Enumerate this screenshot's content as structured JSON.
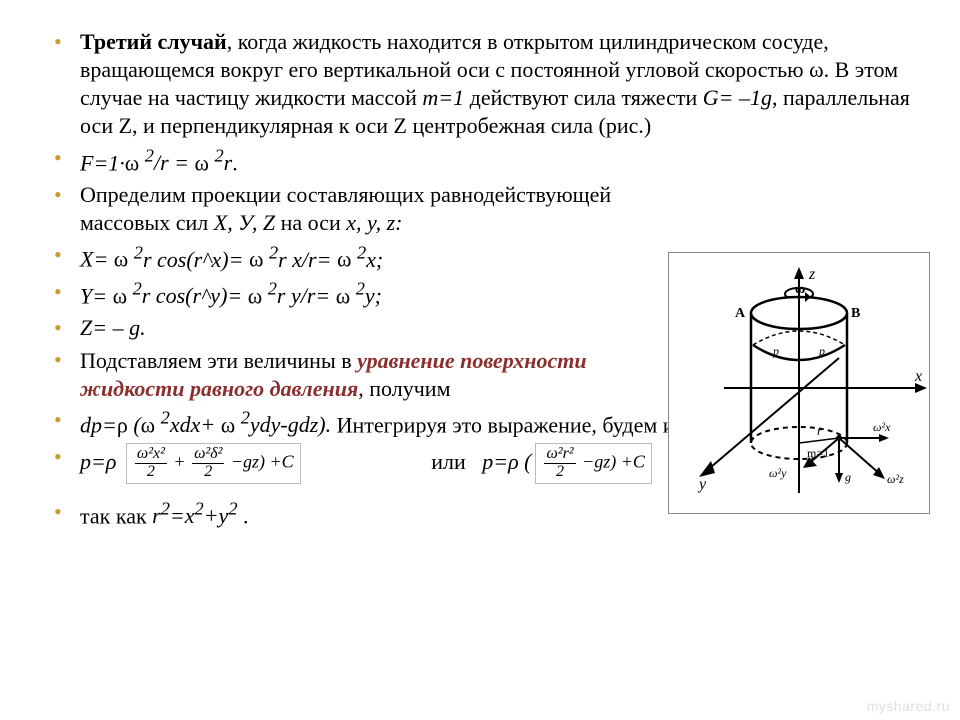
{
  "bullets": [
    {
      "html": "<span class='b'>Третий случай</span>, когда жидкость находится в открытом цилиндрическом сосуде, вращающемся вокруг его вертикальной оси с постоянной угловой скоростью &#969;. В этом случае на частицу жидкости массой <span class='i'>m=1</span> действуют сила тяжести <span class='i'>G= –1g</span>, параллельная оси Z, и перпендикулярная к оси Z центробежная сила (рис.)",
      "wrap": false
    },
    {
      "html": "<span class='i'>F=1·</span>&#969;<span class='i'> <sup>2</sup>/r = </span>&#969;<span class='i'> <sup>2</sup>r</span>.",
      "wrap": false
    },
    {
      "html": "Определим проекции составляющих равнодействующей массовых сил <span class='i'>Х, У, Z</span> на оси <span class='i'>x, y, z:</span>",
      "wrap": true
    },
    {
      "html": "<span class='i'>X= </span>&#969;<span class='i'> <sup>2</sup>r cos(r^x)= </span>&#969;<span class='i'> <sup>2</sup>r x/r= </span>&#969;<span class='i'> <sup>2</sup>x;</span>",
      "wrap": true
    },
    {
      "html": "<span class='i'>Y= </span>&#969;<span class='i'> <sup>2</sup>r cos(r^y)= </span>&#969;<span class='i'> <sup>2</sup>r y/r= </span>&#969;<span class='i'> <sup>2</sup>y;</span>",
      "wrap": true
    },
    {
      "html": "<span class='i'>Z= – g.</span>",
      "wrap": true
    },
    {
      "html": "Подставляем эти величины в <span class='i b red'>уравнение поверхности жидкости равного давления</span>, получим",
      "wrap": true
    },
    {
      "html": "<span class='i'>dp=</span>&#961;<span class='i'> (</span>&#969;<span class='i'> <sup>2</sup>xdx+ </span>&#969;<span class='i'> <sup>2</sup>ydy-gdz).</span> Интегрируя это выражение, будем иметь",
      "wrap": false
    },
    {
      "special": "formula_line"
    },
    {
      "html": "так как <span class='i'>r<sup>2</sup>=x<sup>2</sup>+y<sup>2</sup></span> .",
      "wrap": false,
      "topgap": true
    }
  ],
  "formula": {
    "left_prefix": "p=ρ",
    "box1_terms": {
      "t1_num": "ω²x²",
      "t1_den": "2",
      "t2_num": "ω²δ²",
      "t2_den": "2",
      "t3": "−gz",
      "suffix": "+C"
    },
    "middle": "или",
    "right_prefix": "p=ρ (",
    "box2_terms": {
      "t_num": "ω²r²",
      "t_den": "2",
      "t2": "−gz)",
      "suffix": "+C"
    }
  },
  "figure": {
    "labels": {
      "z": "z",
      "x": "x",
      "y": "y",
      "A": "A",
      "B": "B",
      "omega": "ω",
      "w2x": "ω²x",
      "w2y": "ω²y",
      "w2z": "ω²z",
      "g": "g",
      "r": "r",
      "m1": "m=1",
      "p": "p",
      "pp": "p"
    },
    "colors": {
      "stroke": "#000000",
      "bg": "#ffffff"
    }
  },
  "watermark": "myshared.ru"
}
